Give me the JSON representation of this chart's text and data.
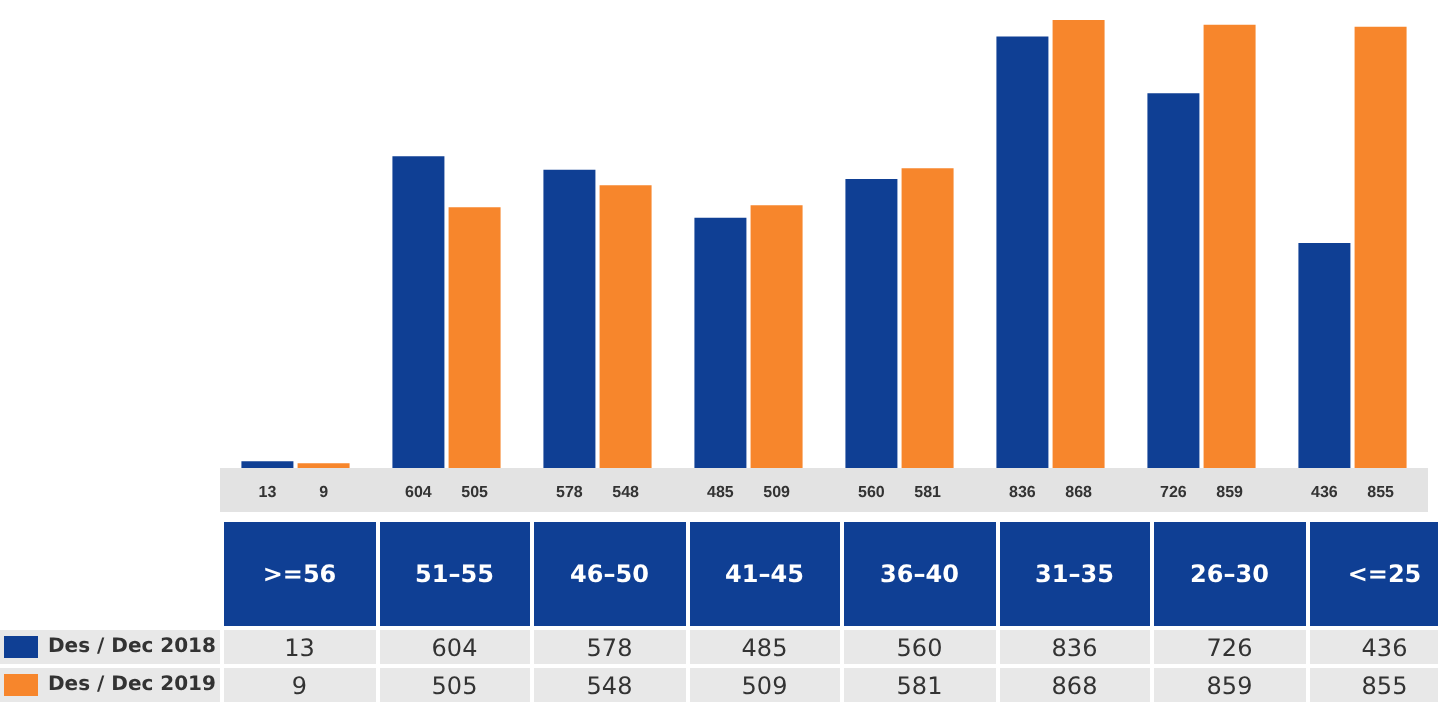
{
  "chart_data": {
    "type": "bar",
    "categories": [
      ">=56",
      "51–55",
      "46–50",
      "41–45",
      "36–40",
      "31–35",
      "26–30",
      "<=25"
    ],
    "series": [
      {
        "name": "Des / Dec 2018",
        "color": "#0f3f94",
        "values": [
          13,
          604,
          578,
          485,
          560,
          836,
          726,
          436
        ],
        "value_labels": [
          "13",
          "604",
          "578",
          "485",
          "560",
          "836",
          "726",
          "436"
        ]
      },
      {
        "name": "Des / Dec 2019",
        "color": "#f7862c",
        "values": [
          9,
          505,
          548,
          509,
          581,
          868,
          859,
          855
        ],
        "value_labels": [
          "9",
          "505",
          "548",
          "509",
          "581",
          "868",
          "859",
          "855"
        ]
      }
    ],
    "annotations": [
      "13",
      "604",
      "578",
      "485",
      "560",
      "836",
      "726",
      "436",
      "9",
      "505",
      "548",
      "509",
      "581",
      "868",
      "859",
      "855"
    ],
    "data_labels": true,
    "grid": false,
    "legend": "bottom left"
  }
}
